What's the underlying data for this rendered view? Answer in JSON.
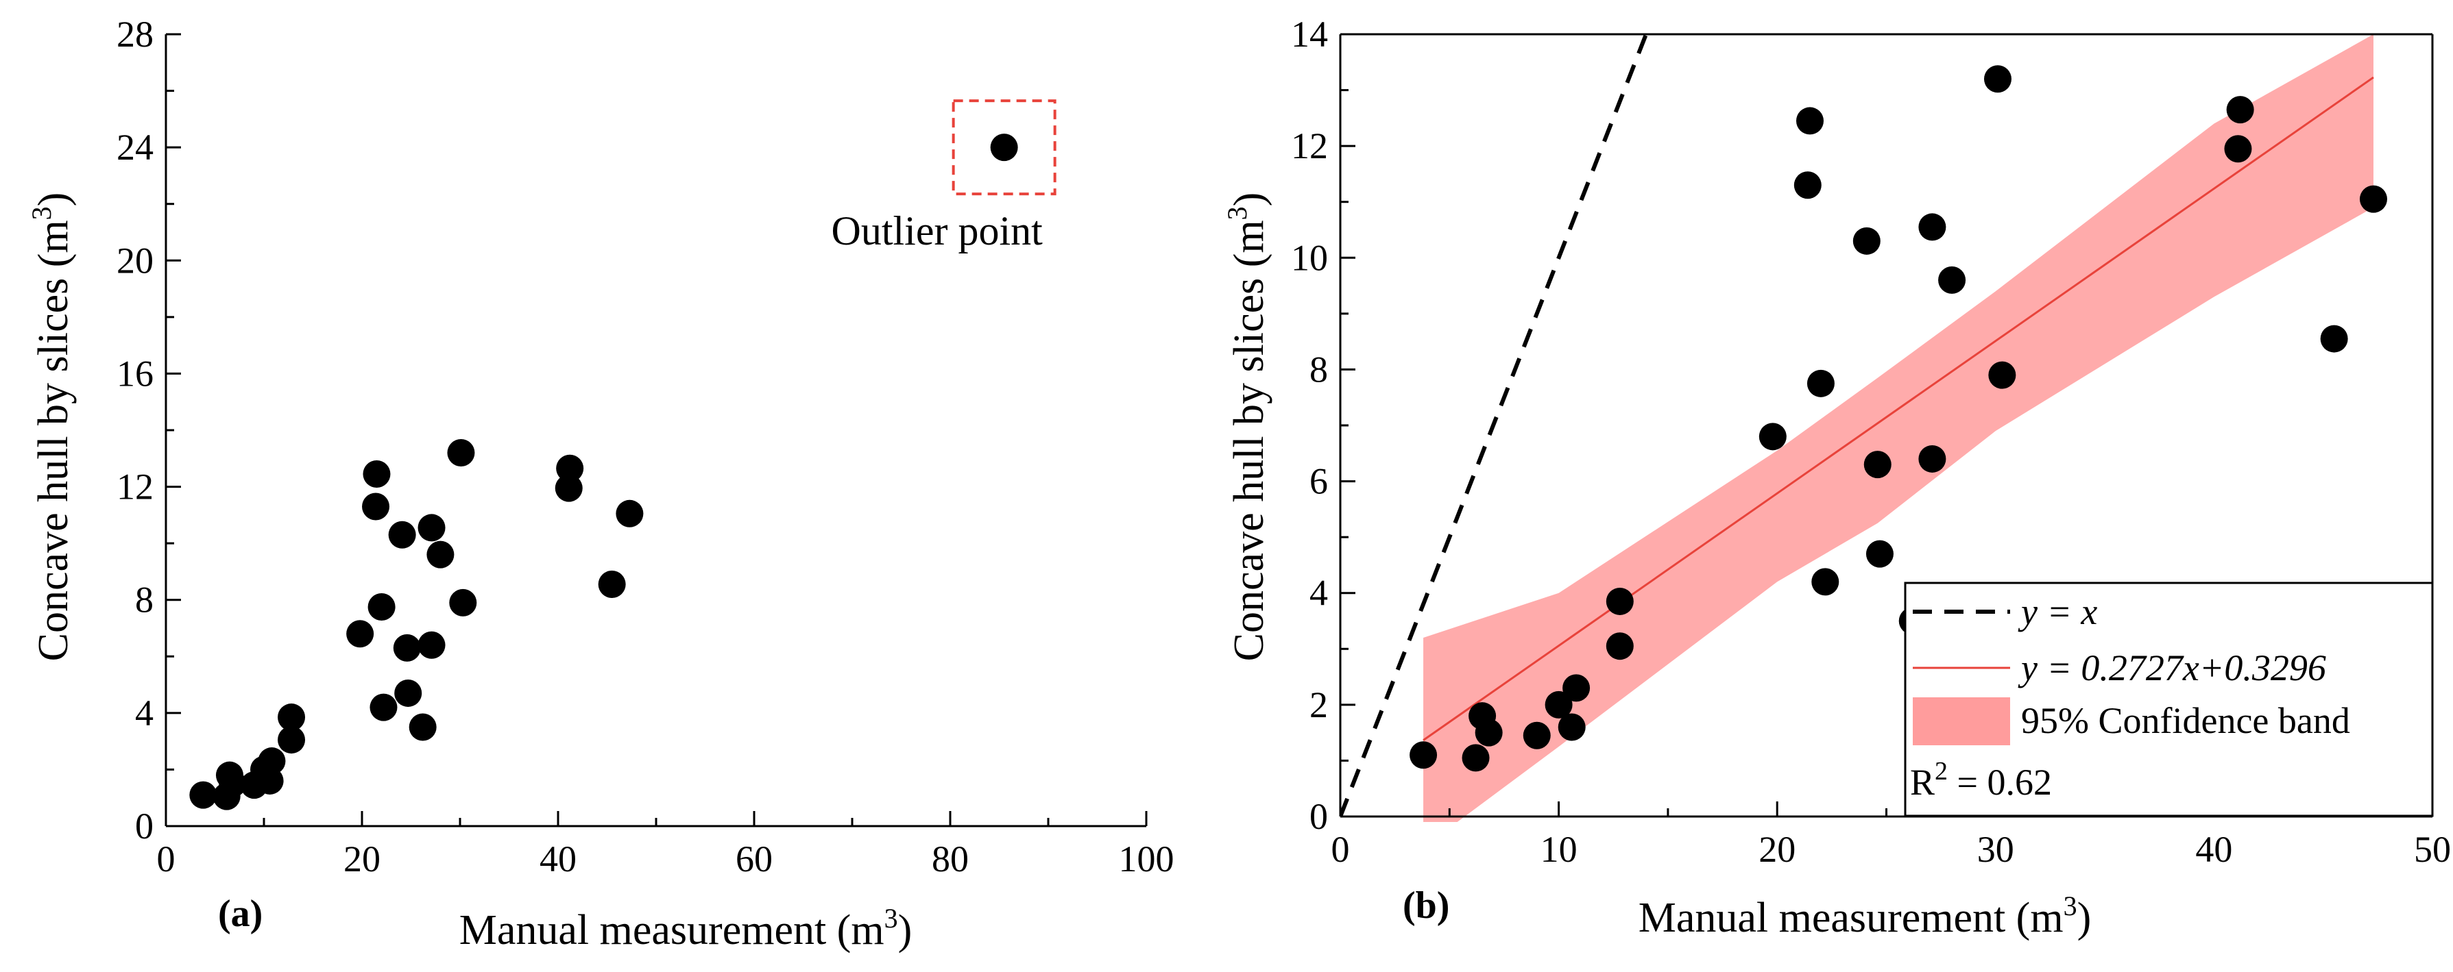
{
  "colors": {
    "points": "#000000",
    "fit_line": "#e8433b",
    "band": "#ff9c9c",
    "outlier_box": "#e8433b",
    "identity_line": "#000000"
  },
  "chart_data": [
    {
      "type": "scatter",
      "panel_label": "(a)",
      "xlabel": "Manual measurement (m",
      "xlabel_sup": "3",
      "xlabel_close": ")",
      "ylabel": "Concave hull by slices (m",
      "ylabel_sup": "3",
      "ylabel_close": ")",
      "xlim": [
        0,
        100
      ],
      "ylim": [
        0,
        28
      ],
      "xticks": [
        0,
        20,
        40,
        60,
        80,
        100
      ],
      "yticks": [
        0,
        4,
        8,
        12,
        16,
        20,
        24,
        28
      ],
      "points": [
        [
          3.8,
          1.1
        ],
        [
          6.2,
          1.05
        ],
        [
          6.5,
          1.8
        ],
        [
          6.8,
          1.5
        ],
        [
          9.0,
          1.45
        ],
        [
          10.0,
          2.0
        ],
        [
          10.6,
          1.6
        ],
        [
          10.8,
          2.3
        ],
        [
          12.8,
          3.05
        ],
        [
          12.8,
          3.85
        ],
        [
          19.8,
          6.8
        ],
        [
          21.4,
          11.3
        ],
        [
          21.5,
          12.45
        ],
        [
          22.0,
          7.75
        ],
        [
          22.2,
          4.2
        ],
        [
          24.1,
          10.3
        ],
        [
          24.6,
          6.3
        ],
        [
          24.7,
          4.7
        ],
        [
          26.2,
          3.5
        ],
        [
          27.1,
          10.55
        ],
        [
          27.1,
          6.4
        ],
        [
          28.0,
          9.6
        ],
        [
          30.1,
          13.2
        ],
        [
          30.3,
          7.9
        ],
        [
          41.1,
          11.95
        ],
        [
          41.2,
          12.65
        ],
        [
          45.5,
          8.55
        ],
        [
          47.3,
          11.05
        ],
        [
          85.5,
          24.0
        ]
      ],
      "outlier": {
        "x": 85.5,
        "y": 24.0,
        "label": "Outlier point"
      }
    },
    {
      "type": "scatter",
      "panel_label": "(b)",
      "xlabel": "Manual measurement (m",
      "xlabel_sup": "3",
      "xlabel_close": ")",
      "ylabel": "Concave hull by slices (m",
      "ylabel_sup": "3",
      "ylabel_close": ")",
      "xlim": [
        0,
        50
      ],
      "ylim": [
        0,
        14
      ],
      "xticks": [
        0,
        10,
        20,
        30,
        40,
        50
      ],
      "yticks": [
        0,
        2,
        4,
        6,
        8,
        10,
        12,
        14
      ],
      "points": [
        [
          3.8,
          1.1
        ],
        [
          6.2,
          1.05
        ],
        [
          6.5,
          1.8
        ],
        [
          6.8,
          1.5
        ],
        [
          9.0,
          1.45
        ],
        [
          10.0,
          2.0
        ],
        [
          10.6,
          1.6
        ],
        [
          10.8,
          2.3
        ],
        [
          12.8,
          3.05
        ],
        [
          12.8,
          3.85
        ],
        [
          19.8,
          6.8
        ],
        [
          21.4,
          11.3
        ],
        [
          21.5,
          12.45
        ],
        [
          22.0,
          7.75
        ],
        [
          22.2,
          4.2
        ],
        [
          24.1,
          10.3
        ],
        [
          24.6,
          6.3
        ],
        [
          24.7,
          4.7
        ],
        [
          26.2,
          3.5
        ],
        [
          27.1,
          10.55
        ],
        [
          27.1,
          6.4
        ],
        [
          28.0,
          9.6
        ],
        [
          30.1,
          13.2
        ],
        [
          30.3,
          7.9
        ],
        [
          41.1,
          11.95
        ],
        [
          41.2,
          12.65
        ],
        [
          45.5,
          8.55
        ],
        [
          47.3,
          11.05
        ]
      ],
      "fit": {
        "slope": 0.2727,
        "intercept": 0.3296,
        "x_range": [
          3.8,
          47.3
        ]
      },
      "confidence_band": {
        "x": [
          3.8,
          10,
          20,
          24.6,
          30,
          40,
          47.3
        ],
        "lower": [
          -0.55,
          1.25,
          4.2,
          5.25,
          6.9,
          9.3,
          10.9
        ],
        "upper": [
          3.2,
          4.0,
          6.55,
          7.85,
          9.4,
          12.4,
          14.0
        ]
      },
      "identity_line": {
        "x_range": [
          0,
          14
        ]
      },
      "legend": {
        "position": "bottom-right",
        "items": [
          {
            "label": "y = x",
            "style": "dashed"
          },
          {
            "label": "y = 0.2727x+0.3296",
            "style": "line"
          },
          {
            "label": "95% Confidence band",
            "style": "band"
          }
        ],
        "r2_prefix": "R",
        "r2_sup": "2",
        "r2_value": " = 0.62"
      }
    }
  ]
}
